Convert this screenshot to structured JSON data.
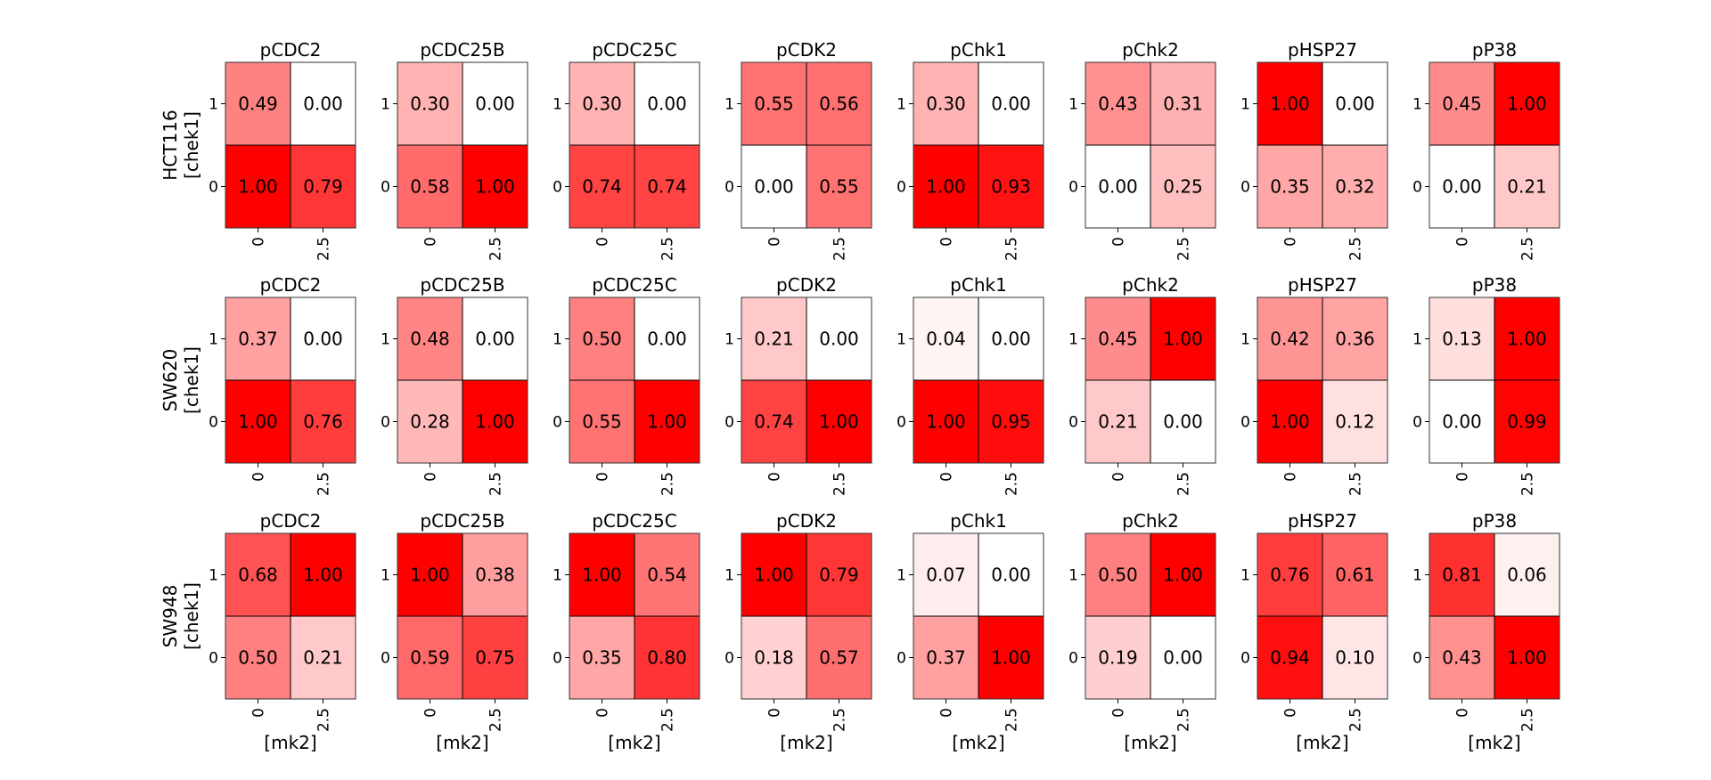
{
  "chart_data": {
    "type": "heatmap",
    "cell_color": "#ff0000",
    "zero_color": "#ffffff",
    "value_range": [
      0,
      1
    ],
    "x_ticks": [
      "0",
      "2.5"
    ],
    "y_ticks": [
      "1",
      "0"
    ],
    "xlabel": "[mk2]",
    "ylabel_suffix": "[chek1]",
    "rows": [
      {
        "cell_line": "HCT116",
        "panels": [
          {
            "title": "pCDC2",
            "values": [
              [
                0.49,
                0.0
              ],
              [
                1.0,
                0.79
              ]
            ]
          },
          {
            "title": "pCDC25B",
            "values": [
              [
                0.3,
                0.0
              ],
              [
                0.58,
                1.0
              ]
            ]
          },
          {
            "title": "pCDC25C",
            "values": [
              [
                0.3,
                0.0
              ],
              [
                0.74,
                0.74
              ]
            ]
          },
          {
            "title": "pCDK2",
            "values": [
              [
                0.55,
                0.56
              ],
              [
                0.0,
                0.55
              ]
            ]
          },
          {
            "title": "pChk1",
            "values": [
              [
                0.3,
                0.0
              ],
              [
                1.0,
                0.93
              ]
            ]
          },
          {
            "title": "pChk2",
            "values": [
              [
                0.43,
                0.31
              ],
              [
                0.0,
                0.25
              ]
            ]
          },
          {
            "title": "pHSP27",
            "values": [
              [
                1.0,
                0.0
              ],
              [
                0.35,
                0.32
              ]
            ]
          },
          {
            "title": "pP38",
            "values": [
              [
                0.45,
                1.0
              ],
              [
                0.0,
                0.21
              ]
            ]
          }
        ]
      },
      {
        "cell_line": "SW620",
        "panels": [
          {
            "title": "pCDC2",
            "values": [
              [
                0.37,
                0.0
              ],
              [
                1.0,
                0.76
              ]
            ]
          },
          {
            "title": "pCDC25B",
            "values": [
              [
                0.48,
                0.0
              ],
              [
                0.28,
                1.0
              ]
            ]
          },
          {
            "title": "pCDC25C",
            "values": [
              [
                0.5,
                0.0
              ],
              [
                0.55,
                1.0
              ]
            ]
          },
          {
            "title": "pCDK2",
            "values": [
              [
                0.21,
                0.0
              ],
              [
                0.74,
                1.0
              ]
            ]
          },
          {
            "title": "pChk1",
            "values": [
              [
                0.04,
                0.0
              ],
              [
                1.0,
                0.95
              ]
            ]
          },
          {
            "title": "pChk2",
            "values": [
              [
                0.45,
                1.0
              ],
              [
                0.21,
                0.0
              ]
            ]
          },
          {
            "title": "pHSP27",
            "values": [
              [
                0.42,
                0.36
              ],
              [
                1.0,
                0.12
              ]
            ]
          },
          {
            "title": "pP38",
            "values": [
              [
                0.13,
                1.0
              ],
              [
                0.0,
                0.99
              ]
            ]
          }
        ]
      },
      {
        "cell_line": "SW948",
        "panels": [
          {
            "title": "pCDC2",
            "values": [
              [
                0.68,
                1.0
              ],
              [
                0.5,
                0.21
              ]
            ]
          },
          {
            "title": "pCDC25B",
            "values": [
              [
                1.0,
                0.38
              ],
              [
                0.59,
                0.75
              ]
            ]
          },
          {
            "title": "pCDC25C",
            "values": [
              [
                1.0,
                0.54
              ],
              [
                0.35,
                0.8
              ]
            ]
          },
          {
            "title": "pCDK2",
            "values": [
              [
                1.0,
                0.79
              ],
              [
                0.18,
                0.57
              ]
            ]
          },
          {
            "title": "pChk1",
            "values": [
              [
                0.07,
                0.0
              ],
              [
                0.37,
                1.0
              ]
            ]
          },
          {
            "title": "pChk2",
            "values": [
              [
                0.5,
                1.0
              ],
              [
                0.19,
                0.0
              ]
            ]
          },
          {
            "title": "pHSP27",
            "values": [
              [
                0.76,
                0.61
              ],
              [
                0.94,
                0.1
              ]
            ]
          },
          {
            "title": "pP38",
            "values": [
              [
                0.81,
                0.06
              ],
              [
                0.43,
                1.0
              ]
            ]
          }
        ]
      }
    ]
  }
}
